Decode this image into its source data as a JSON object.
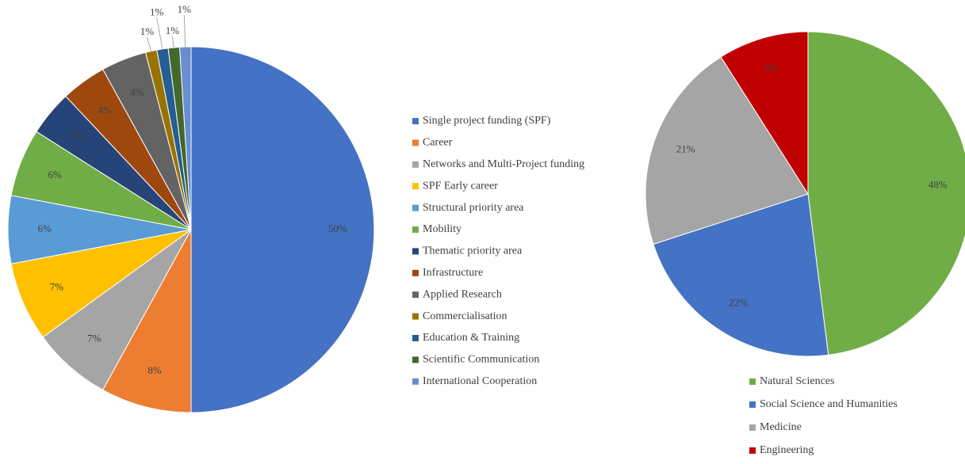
{
  "chart_data": [
    {
      "type": "pie",
      "categories": [
        "Single project funding (SPF)",
        "Career",
        "Networks and Multi-Project funding",
        "SPF Early career",
        "Structural priority area",
        "Mobility",
        "Thematic priority area",
        "Infrastructure",
        "Applied Research",
        "Commercialisation",
        "Education & Training",
        "Scientific Communication",
        "International Cooperation"
      ],
      "values": [
        50,
        8,
        7,
        7,
        6,
        6,
        4,
        4,
        4,
        1,
        1,
        1,
        1
      ],
      "value_labels": [
        "50%",
        "8%",
        "7%",
        "7%",
        "6%",
        "6%",
        "4%",
        "4%",
        "4%",
        "1%",
        "1%",
        "1%",
        "1%"
      ],
      "colors": [
        "#4472c4",
        "#ed7d31",
        "#a5a5a5",
        "#ffc000",
        "#5b9bd5",
        "#70ad47",
        "#264478",
        "#9e480e",
        "#636363",
        "#997300",
        "#255e91",
        "#43682b",
        "#698ed0"
      ],
      "legend": "right"
    },
    {
      "type": "pie",
      "categories": [
        "Natural Sciences",
        "Social Science and Humanities",
        "Medicine",
        "Engineering"
      ],
      "values": [
        48,
        22,
        21,
        9
      ],
      "value_labels": [
        "48%",
        "22%",
        "21%",
        "9%"
      ],
      "colors": [
        "#70ad47",
        "#4472c4",
        "#a5a5a5",
        "#c00000"
      ],
      "legend": "bottom"
    }
  ]
}
